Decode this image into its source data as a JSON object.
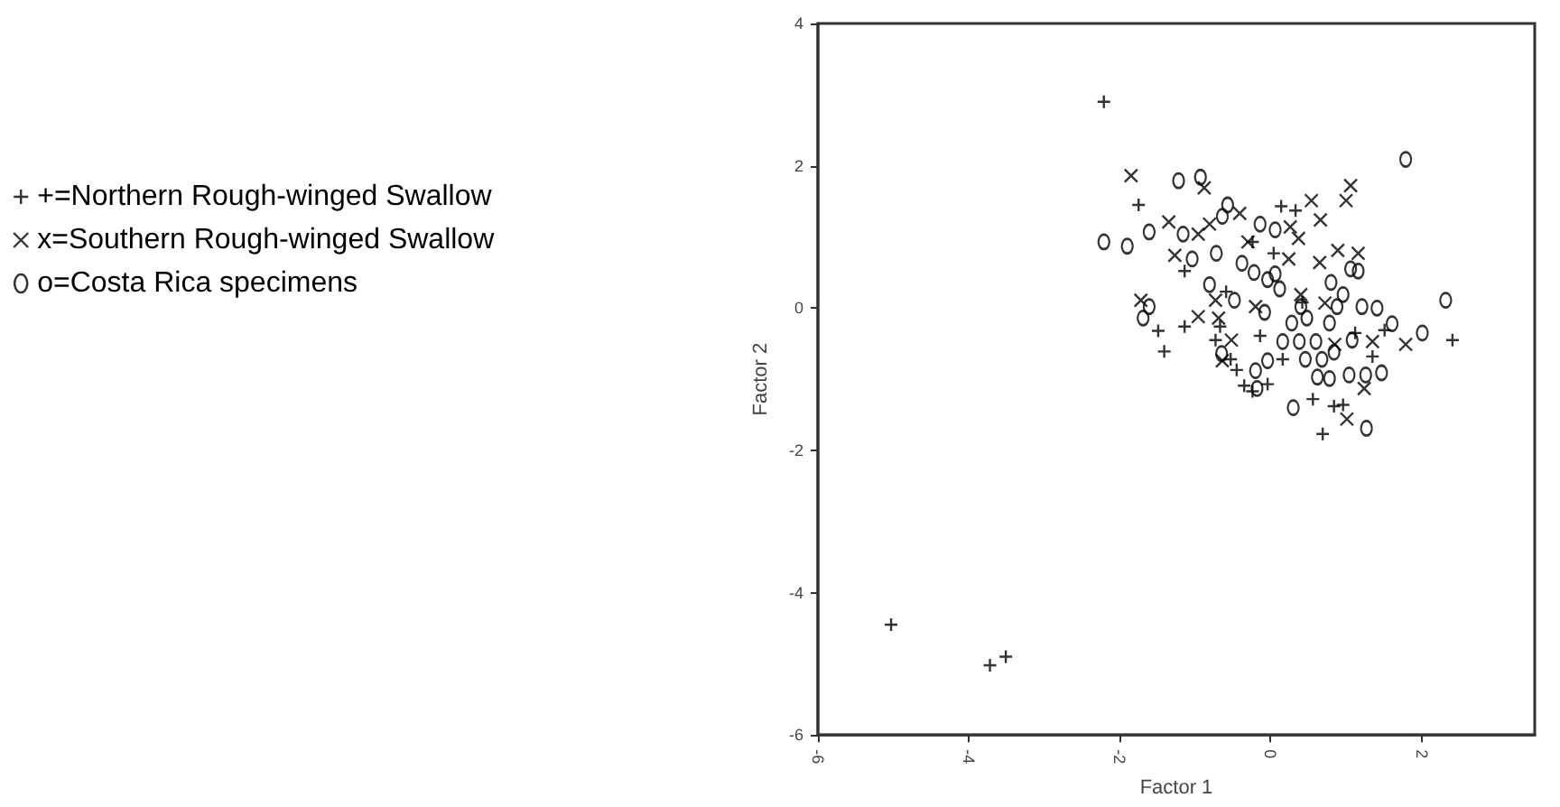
{
  "chart_data": {
    "type": "scatter",
    "xlabel": "Factor 1",
    "ylabel": "Factor 2",
    "xlim": [
      -6,
      3.5
    ],
    "xticks": [
      -6,
      -4,
      -2,
      0,
      2
    ],
    "ylim": [
      -6,
      4
    ],
    "yticks": [
      -6,
      -4,
      -2,
      0,
      2,
      4
    ],
    "grid": false,
    "legend": "left",
    "series": [
      {
        "name": "+=Northern Rough-winged Swallow",
        "color": "#000000",
        "marker": "plus",
        "x": [
          -2.21,
          -1.75,
          -5.03,
          -3.72,
          -3.51,
          -1.14,
          -1.49,
          -1.41,
          -1.14,
          -0.73,
          -0.67,
          -0.45,
          -0.35,
          -0.04,
          -0.24,
          0.14,
          0.33,
          0.16,
          0.56,
          0.69,
          0.84,
          0.96,
          2.41,
          1.35,
          1.51,
          0.04,
          -0.24,
          1.12,
          0.42,
          -0.14,
          -0.53,
          -0.59
        ],
        "values": [
          2.9,
          1.45,
          -4.45,
          -5.02,
          -4.9,
          0.52,
          -0.32,
          -0.61,
          -0.26,
          -0.45,
          -0.26,
          -0.87,
          -1.09,
          -1.07,
          -1.17,
          1.43,
          1.37,
          -0.72,
          -1.28,
          -1.77,
          -1.38,
          -1.36,
          -0.45,
          -0.68,
          -0.31,
          0.77,
          0.93,
          -0.35,
          0.08,
          -0.39,
          -0.72,
          0.23
        ]
      },
      {
        "name": "x=Southern Rough-winged Swallow",
        "color": "#000000",
        "marker": "cross",
        "x": [
          -1.85,
          -0.88,
          -1.35,
          -0.81,
          -0.41,
          0.54,
          1.06,
          1.0,
          0.66,
          0.26,
          0.37,
          0.89,
          0.65,
          -1.27,
          -0.96,
          -1.72,
          -0.96,
          -0.69,
          -0.73,
          -0.52,
          -0.64,
          1.24,
          1.01,
          1.79,
          1.35,
          -0.2,
          0.24,
          0.72,
          -0.3,
          1.16,
          0.4,
          0.85
        ],
        "values": [
          1.86,
          1.69,
          1.21,
          1.18,
          1.33,
          1.51,
          1.72,
          1.51,
          1.24,
          1.14,
          0.98,
          0.81,
          0.64,
          0.74,
          1.04,
          0.11,
          -0.12,
          -0.14,
          0.11,
          -0.45,
          -0.74,
          -1.13,
          -1.56,
          -0.51,
          -0.47,
          0.02,
          0.69,
          0.07,
          0.93,
          0.77,
          0.19,
          -0.51
        ]
      },
      {
        "name": "o=Costa Rica specimens",
        "color": "#000000",
        "marker": "circle",
        "x": [
          -2.21,
          -1.9,
          -1.61,
          -1.22,
          -0.93,
          -1.16,
          -1.04,
          -0.57,
          -0.64,
          -0.14,
          0.06,
          1.79,
          2.32,
          2.01,
          1.61,
          1.41,
          1.06,
          1.16,
          1.47,
          1.27,
          0.3,
          -0.2,
          -0.18,
          -0.65,
          -0.81,
          -0.48,
          -0.38,
          -0.72,
          -1.61,
          -1.69,
          -0.04,
          0.06,
          0.12,
          -0.04,
          0.46,
          0.62,
          0.78,
          1.04,
          1.26,
          0.8,
          0.96,
          0.88,
          1.21,
          0.48,
          0.78,
          0.16,
          0.6,
          0.28,
          1.08,
          0.84,
          -0.08,
          0.38,
          -0.22,
          0.4,
          0.68
        ],
        "values": [
          0.93,
          0.87,
          1.07,
          1.79,
          1.84,
          1.04,
          0.69,
          1.45,
          1.29,
          1.18,
          1.1,
          2.09,
          0.11,
          -0.35,
          -0.22,
          0.0,
          0.55,
          0.52,
          -0.91,
          -1.69,
          -1.4,
          -0.88,
          -1.13,
          -0.64,
          0.33,
          0.11,
          0.63,
          0.77,
          0.02,
          -0.14,
          0.4,
          0.48,
          0.27,
          -0.74,
          -0.72,
          -0.97,
          -0.99,
          -0.94,
          -0.94,
          0.36,
          0.19,
          0.02,
          0.02,
          -0.14,
          -0.21,
          -0.47,
          -0.47,
          -0.21,
          -0.45,
          -0.62,
          -0.06,
          -0.47,
          0.5,
          0.02,
          -0.72
        ]
      }
    ]
  }
}
